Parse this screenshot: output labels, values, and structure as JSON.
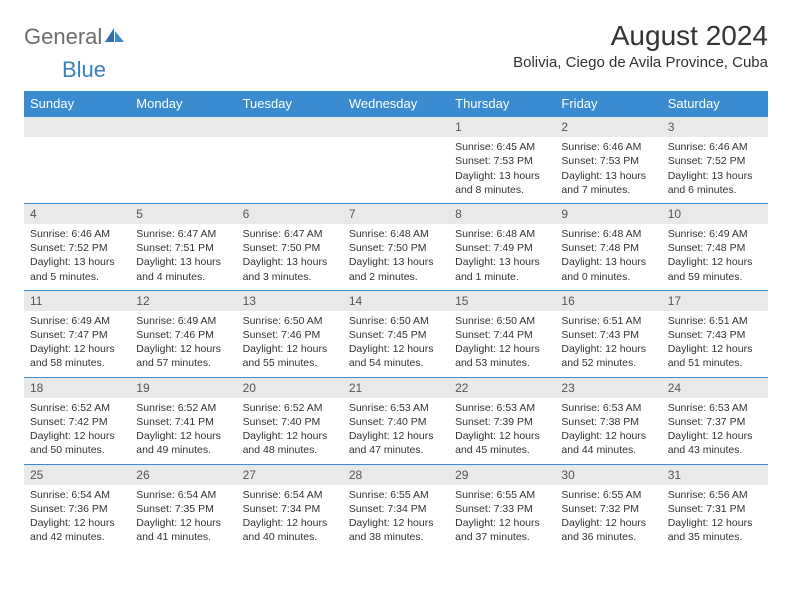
{
  "logo": {
    "text_gray": "General",
    "text_blue": "Blue"
  },
  "title": "August 2024",
  "location": "Bolivia, Ciego de Avila Province, Cuba",
  "colors": {
    "header_bg": "#3b8bd1",
    "header_text": "#ffffff",
    "row_border": "#3b8bd1",
    "daynum_bg": "#e8e9ea",
    "body_text": "#333333",
    "logo_gray": "#6d6d6d",
    "logo_blue": "#3b7fc4"
  },
  "day_headers": [
    "Sunday",
    "Monday",
    "Tuesday",
    "Wednesday",
    "Thursday",
    "Friday",
    "Saturday"
  ],
  "weeks": [
    [
      {
        "day": "",
        "sunrise": "",
        "sunset": "",
        "dl1": "",
        "dl2": ""
      },
      {
        "day": "",
        "sunrise": "",
        "sunset": "",
        "dl1": "",
        "dl2": ""
      },
      {
        "day": "",
        "sunrise": "",
        "sunset": "",
        "dl1": "",
        "dl2": ""
      },
      {
        "day": "",
        "sunrise": "",
        "sunset": "",
        "dl1": "",
        "dl2": ""
      },
      {
        "day": "1",
        "sunrise": "Sunrise: 6:45 AM",
        "sunset": "Sunset: 7:53 PM",
        "dl1": "Daylight: 13 hours",
        "dl2": "and 8 minutes."
      },
      {
        "day": "2",
        "sunrise": "Sunrise: 6:46 AM",
        "sunset": "Sunset: 7:53 PM",
        "dl1": "Daylight: 13 hours",
        "dl2": "and 7 minutes."
      },
      {
        "day": "3",
        "sunrise": "Sunrise: 6:46 AM",
        "sunset": "Sunset: 7:52 PM",
        "dl1": "Daylight: 13 hours",
        "dl2": "and 6 minutes."
      }
    ],
    [
      {
        "day": "4",
        "sunrise": "Sunrise: 6:46 AM",
        "sunset": "Sunset: 7:52 PM",
        "dl1": "Daylight: 13 hours",
        "dl2": "and 5 minutes."
      },
      {
        "day": "5",
        "sunrise": "Sunrise: 6:47 AM",
        "sunset": "Sunset: 7:51 PM",
        "dl1": "Daylight: 13 hours",
        "dl2": "and 4 minutes."
      },
      {
        "day": "6",
        "sunrise": "Sunrise: 6:47 AM",
        "sunset": "Sunset: 7:50 PM",
        "dl1": "Daylight: 13 hours",
        "dl2": "and 3 minutes."
      },
      {
        "day": "7",
        "sunrise": "Sunrise: 6:48 AM",
        "sunset": "Sunset: 7:50 PM",
        "dl1": "Daylight: 13 hours",
        "dl2": "and 2 minutes."
      },
      {
        "day": "8",
        "sunrise": "Sunrise: 6:48 AM",
        "sunset": "Sunset: 7:49 PM",
        "dl1": "Daylight: 13 hours",
        "dl2": "and 1 minute."
      },
      {
        "day": "9",
        "sunrise": "Sunrise: 6:48 AM",
        "sunset": "Sunset: 7:48 PM",
        "dl1": "Daylight: 13 hours",
        "dl2": "and 0 minutes."
      },
      {
        "day": "10",
        "sunrise": "Sunrise: 6:49 AM",
        "sunset": "Sunset: 7:48 PM",
        "dl1": "Daylight: 12 hours",
        "dl2": "and 59 minutes."
      }
    ],
    [
      {
        "day": "11",
        "sunrise": "Sunrise: 6:49 AM",
        "sunset": "Sunset: 7:47 PM",
        "dl1": "Daylight: 12 hours",
        "dl2": "and 58 minutes."
      },
      {
        "day": "12",
        "sunrise": "Sunrise: 6:49 AM",
        "sunset": "Sunset: 7:46 PM",
        "dl1": "Daylight: 12 hours",
        "dl2": "and 57 minutes."
      },
      {
        "day": "13",
        "sunrise": "Sunrise: 6:50 AM",
        "sunset": "Sunset: 7:46 PM",
        "dl1": "Daylight: 12 hours",
        "dl2": "and 55 minutes."
      },
      {
        "day": "14",
        "sunrise": "Sunrise: 6:50 AM",
        "sunset": "Sunset: 7:45 PM",
        "dl1": "Daylight: 12 hours",
        "dl2": "and 54 minutes."
      },
      {
        "day": "15",
        "sunrise": "Sunrise: 6:50 AM",
        "sunset": "Sunset: 7:44 PM",
        "dl1": "Daylight: 12 hours",
        "dl2": "and 53 minutes."
      },
      {
        "day": "16",
        "sunrise": "Sunrise: 6:51 AM",
        "sunset": "Sunset: 7:43 PM",
        "dl1": "Daylight: 12 hours",
        "dl2": "and 52 minutes."
      },
      {
        "day": "17",
        "sunrise": "Sunrise: 6:51 AM",
        "sunset": "Sunset: 7:43 PM",
        "dl1": "Daylight: 12 hours",
        "dl2": "and 51 minutes."
      }
    ],
    [
      {
        "day": "18",
        "sunrise": "Sunrise: 6:52 AM",
        "sunset": "Sunset: 7:42 PM",
        "dl1": "Daylight: 12 hours",
        "dl2": "and 50 minutes."
      },
      {
        "day": "19",
        "sunrise": "Sunrise: 6:52 AM",
        "sunset": "Sunset: 7:41 PM",
        "dl1": "Daylight: 12 hours",
        "dl2": "and 49 minutes."
      },
      {
        "day": "20",
        "sunrise": "Sunrise: 6:52 AM",
        "sunset": "Sunset: 7:40 PM",
        "dl1": "Daylight: 12 hours",
        "dl2": "and 48 minutes."
      },
      {
        "day": "21",
        "sunrise": "Sunrise: 6:53 AM",
        "sunset": "Sunset: 7:40 PM",
        "dl1": "Daylight: 12 hours",
        "dl2": "and 47 minutes."
      },
      {
        "day": "22",
        "sunrise": "Sunrise: 6:53 AM",
        "sunset": "Sunset: 7:39 PM",
        "dl1": "Daylight: 12 hours",
        "dl2": "and 45 minutes."
      },
      {
        "day": "23",
        "sunrise": "Sunrise: 6:53 AM",
        "sunset": "Sunset: 7:38 PM",
        "dl1": "Daylight: 12 hours",
        "dl2": "and 44 minutes."
      },
      {
        "day": "24",
        "sunrise": "Sunrise: 6:53 AM",
        "sunset": "Sunset: 7:37 PM",
        "dl1": "Daylight: 12 hours",
        "dl2": "and 43 minutes."
      }
    ],
    [
      {
        "day": "25",
        "sunrise": "Sunrise: 6:54 AM",
        "sunset": "Sunset: 7:36 PM",
        "dl1": "Daylight: 12 hours",
        "dl2": "and 42 minutes."
      },
      {
        "day": "26",
        "sunrise": "Sunrise: 6:54 AM",
        "sunset": "Sunset: 7:35 PM",
        "dl1": "Daylight: 12 hours",
        "dl2": "and 41 minutes."
      },
      {
        "day": "27",
        "sunrise": "Sunrise: 6:54 AM",
        "sunset": "Sunset: 7:34 PM",
        "dl1": "Daylight: 12 hours",
        "dl2": "and 40 minutes."
      },
      {
        "day": "28",
        "sunrise": "Sunrise: 6:55 AM",
        "sunset": "Sunset: 7:34 PM",
        "dl1": "Daylight: 12 hours",
        "dl2": "and 38 minutes."
      },
      {
        "day": "29",
        "sunrise": "Sunrise: 6:55 AM",
        "sunset": "Sunset: 7:33 PM",
        "dl1": "Daylight: 12 hours",
        "dl2": "and 37 minutes."
      },
      {
        "day": "30",
        "sunrise": "Sunrise: 6:55 AM",
        "sunset": "Sunset: 7:32 PM",
        "dl1": "Daylight: 12 hours",
        "dl2": "and 36 minutes."
      },
      {
        "day": "31",
        "sunrise": "Sunrise: 6:56 AM",
        "sunset": "Sunset: 7:31 PM",
        "dl1": "Daylight: 12 hours",
        "dl2": "and 35 minutes."
      }
    ]
  ]
}
